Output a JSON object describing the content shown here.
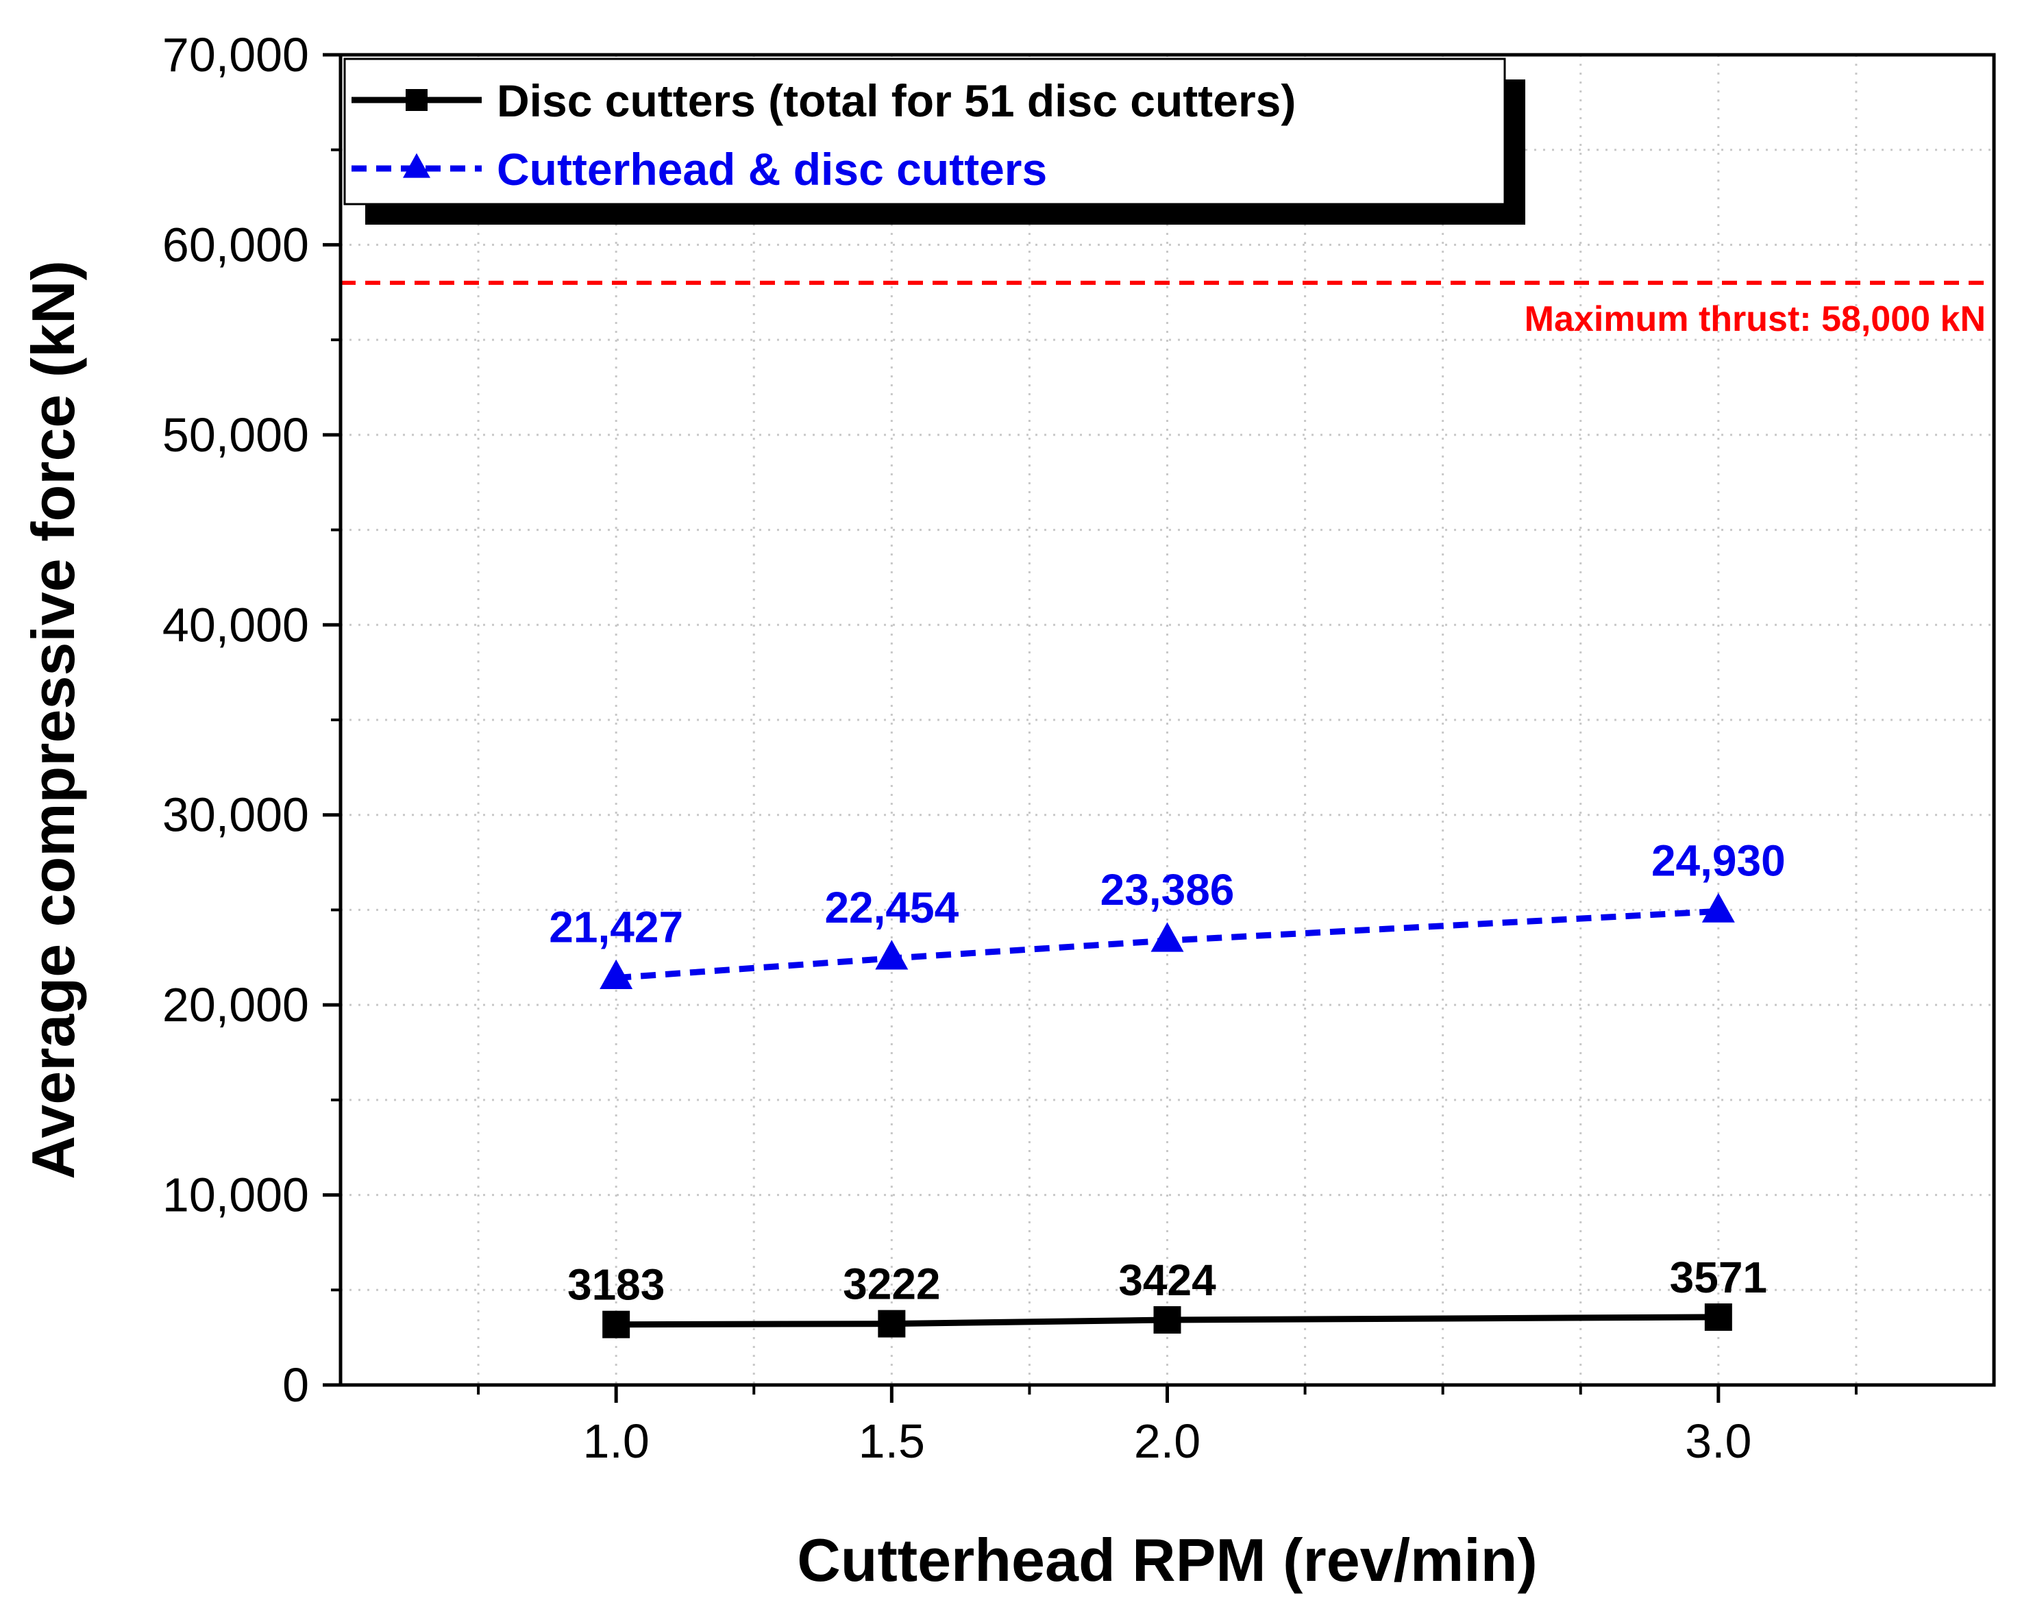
{
  "chart_data": {
    "type": "line",
    "xlabel": "Cutterhead RPM (rev/min)",
    "ylabel": "Average compressive force (kN)",
    "x": [
      1.0,
      1.5,
      2.0,
      3.0
    ],
    "x_tick_labels": [
      "1.0",
      "1.5",
      "2.0",
      "3.0"
    ],
    "xlim": [
      0.5,
      3.5
    ],
    "ylim": [
      0,
      70000
    ],
    "y_ticks": [
      0,
      10000,
      20000,
      30000,
      40000,
      50000,
      60000,
      70000
    ],
    "y_tick_labels": [
      "0",
      "10,000",
      "20,000",
      "30,000",
      "40,000",
      "50,000",
      "60,000",
      "70,000"
    ],
    "grid": true,
    "legend_position": "top-left",
    "series": [
      {
        "name": "Disc cutters (total for 51 disc cutters)",
        "values": [
          3183,
          3222,
          3424,
          3571
        ],
        "labels": [
          "3183",
          "3222",
          "3424",
          "3571"
        ],
        "color": "#000000",
        "marker": "square",
        "line_style": "solid"
      },
      {
        "name": "Cutterhead & disc cutters",
        "values": [
          21427,
          22454,
          23386,
          24930
        ],
        "labels": [
          "21,427",
          "22,454",
          "23,386",
          "24,930"
        ],
        "color": "#0000ee",
        "marker": "triangle",
        "line_style": "dashed"
      }
    ],
    "reference_lines": [
      {
        "y": 58000,
        "label": "Maximum thrust: 58,000 kN",
        "color": "#ff0000",
        "line_style": "dashed"
      }
    ]
  }
}
